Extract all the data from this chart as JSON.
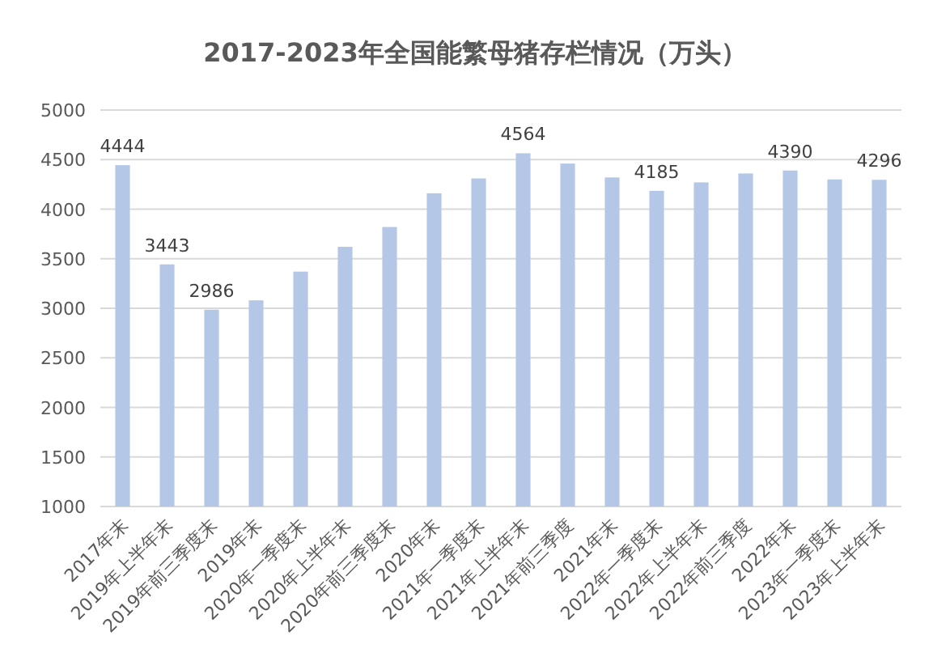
{
  "chart_data": {
    "type": "bar",
    "title": "2017-2023年全国能繁母猪存栏情况（万头）",
    "categories": [
      "2017年末",
      "2019年上半年末",
      "2019年前三季度末",
      "2019年末",
      "2020年一季度末",
      "2020年上半年末",
      "2020年前三季度末",
      "2020年末",
      "2021年一季度末",
      "2021年上半年末",
      "2021年前三季度",
      "2021年末",
      "2022年一季度末",
      "2022年上半年末",
      "2022年前三季度",
      "2022年末",
      "2023年一季度末",
      "2023年上半年末"
    ],
    "values": [
      4444,
      3443,
      2986,
      3080,
      3370,
      3620,
      3820,
      4160,
      4310,
      4564,
      4460,
      4320,
      4185,
      4270,
      4360,
      4390,
      4300,
      4296
    ],
    "value_labels": [
      "4444",
      "3443",
      "2986",
      null,
      null,
      null,
      null,
      null,
      null,
      "4564",
      null,
      null,
      "4185",
      null,
      null,
      "4390",
      null,
      "4296"
    ],
    "color": "#b4c7e7",
    "ylim": [
      1000,
      5000
    ],
    "yticks": [
      1000,
      1500,
      2000,
      2500,
      3000,
      3500,
      4000,
      4500,
      5000
    ],
    "grid": "y"
  }
}
